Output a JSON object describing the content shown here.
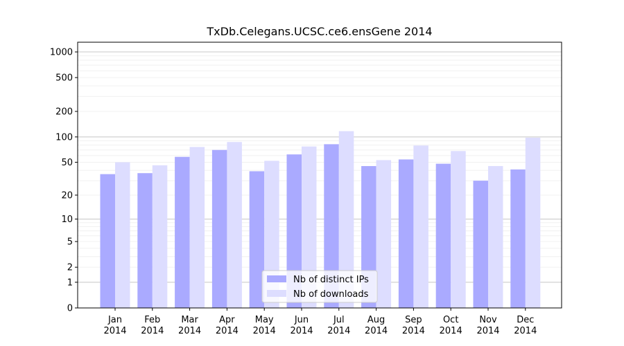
{
  "chart_data": {
    "type": "bar",
    "title": "TxDb.Celegans.UCSC.ce6.ensGene 2014",
    "xlabel": "",
    "ylabel": "",
    "yscale": "log1p",
    "ylim": [
      0,
      1300
    ],
    "yticks": [
      {
        "value": 0,
        "label": "0"
      },
      {
        "value": 1,
        "label": "1"
      },
      {
        "value": 2,
        "label": "2"
      },
      {
        "value": 5,
        "label": "5"
      },
      {
        "value": 10,
        "label": "10"
      },
      {
        "value": 20,
        "label": "20"
      },
      {
        "value": 50,
        "label": "50"
      },
      {
        "value": 100,
        "label": "100"
      },
      {
        "value": 200,
        "label": "200"
      },
      {
        "value": 500,
        "label": "500"
      },
      {
        "value": 1000,
        "label": "1000"
      }
    ],
    "categories": [
      {
        "month": "Jan",
        "year": "2014"
      },
      {
        "month": "Feb",
        "year": "2014"
      },
      {
        "month": "Mar",
        "year": "2014"
      },
      {
        "month": "Apr",
        "year": "2014"
      },
      {
        "month": "May",
        "year": "2014"
      },
      {
        "month": "Jun",
        "year": "2014"
      },
      {
        "month": "Jul",
        "year": "2014"
      },
      {
        "month": "Aug",
        "year": "2014"
      },
      {
        "month": "Sep",
        "year": "2014"
      },
      {
        "month": "Oct",
        "year": "2014"
      },
      {
        "month": "Nov",
        "year": "2014"
      },
      {
        "month": "Dec",
        "year": "2014"
      }
    ],
    "series": [
      {
        "name": "Nb of distinct IPs",
        "color": "#aaaaff",
        "values": [
          36,
          37,
          58,
          70,
          39,
          62,
          82,
          45,
          54,
          48,
          30,
          41
        ]
      },
      {
        "name": "Nb of downloads",
        "color": "#ddddff",
        "values": [
          50,
          46,
          76,
          87,
          52,
          77,
          117,
          53,
          79,
          68,
          45,
          98
        ]
      }
    ],
    "grid": true,
    "legend": "bottom-center"
  }
}
